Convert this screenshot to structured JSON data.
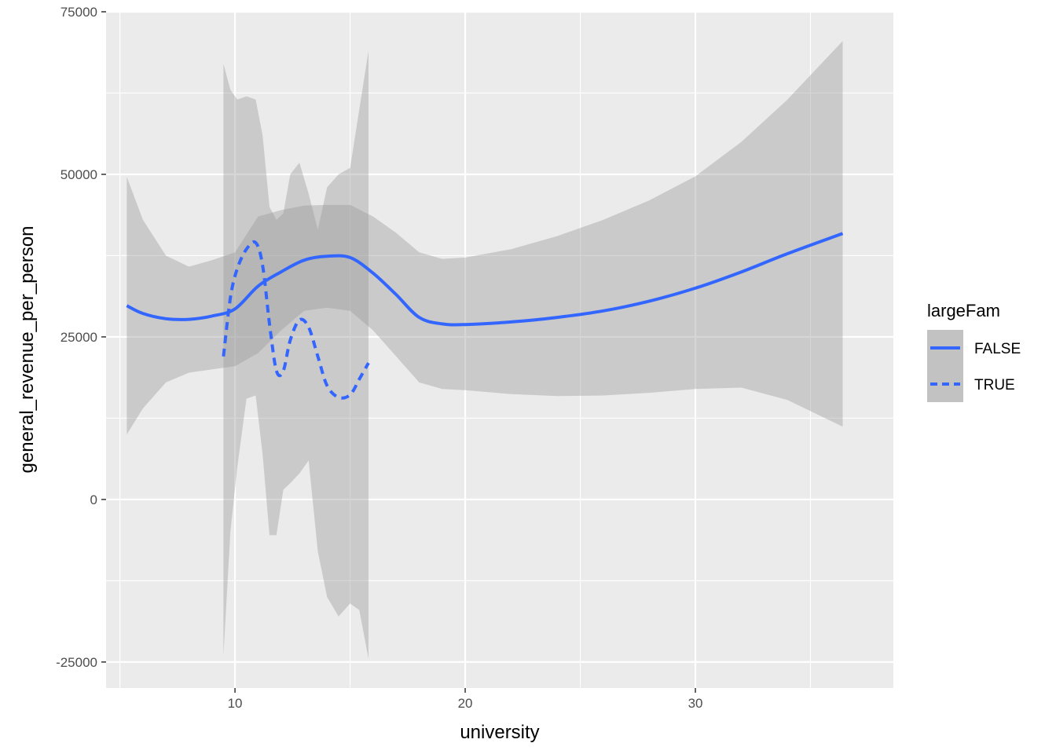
{
  "chart_data": {
    "type": "line",
    "title": "",
    "xlabel": "university",
    "ylabel": "general_revenue_per_person",
    "xlim": [
      4.4,
      38.6
    ],
    "ylim": [
      -29000,
      75000
    ],
    "x_ticks": [
      10,
      20,
      30
    ],
    "x_tick_labels": [
      "10",
      "20",
      "30"
    ],
    "y_ticks": [
      -25000,
      0,
      25000,
      50000,
      75000
    ],
    "y_tick_labels": [
      "-25000",
      "0",
      "25000",
      "50000",
      "75000"
    ],
    "grid": true,
    "legend": {
      "title": "largeFam",
      "position": "right"
    },
    "series": [
      {
        "name": "FALSE",
        "line_style": "solid",
        "color": "#3366FF",
        "x": [
          5.3,
          6,
          7,
          8,
          9,
          10,
          11,
          12,
          13,
          14,
          15,
          16,
          17,
          18,
          19,
          20,
          22,
          24,
          26,
          28,
          30,
          32,
          34,
          36.4
        ],
        "y": [
          29800,
          28600,
          27800,
          27700,
          28200,
          29300,
          32800,
          35000,
          36800,
          37400,
          37200,
          34800,
          31500,
          28000,
          27000,
          26900,
          27300,
          28000,
          29000,
          30500,
          32500,
          35000,
          37800,
          40900
        ],
        "lower": [
          10000,
          14000,
          18000,
          19500,
          20000,
          20500,
          22500,
          26000,
          29000,
          29500,
          29000,
          26000,
          22000,
          18000,
          17000,
          16800,
          16200,
          15900,
          16000,
          16400,
          17000,
          17200,
          15300,
          11200
        ],
        "upper": [
          49600,
          43000,
          37500,
          35800,
          36800,
          38000,
          43500,
          44500,
          45200,
          45300,
          45300,
          43500,
          41000,
          38000,
          37000,
          37200,
          38500,
          40500,
          43000,
          46000,
          49700,
          55000,
          61500,
          70500
        ]
      },
      {
        "name": "TRUE",
        "line_style": "dashed",
        "color": "#3366FF",
        "x": [
          9.5,
          9.8,
          10.1,
          10.5,
          10.9,
          11.2,
          11.5,
          11.8,
          12.1,
          12.4,
          12.8,
          13.2,
          13.6,
          14.0,
          14.5,
          15.0,
          15.4,
          15.8
        ],
        "y": [
          22000,
          31000,
          35500,
          38500,
          39500,
          36000,
          27000,
          19800,
          19800,
          24500,
          27600,
          26500,
          22000,
          17500,
          15700,
          16100,
          18500,
          21000
        ],
        "lower": [
          -24000,
          -5000,
          5000,
          15500,
          16000,
          7000,
          -5500,
          -5500,
          1500,
          2500,
          4000,
          6000,
          -8000,
          -15000,
          -18000,
          -16000,
          -17000,
          -24500
        ],
        "upper": [
          67000,
          63000,
          61500,
          62000,
          61500,
          56000,
          45000,
          43000,
          44000,
          50000,
          51800,
          47000,
          41500,
          48000,
          50000,
          51000,
          60000,
          69000
        ]
      }
    ]
  }
}
